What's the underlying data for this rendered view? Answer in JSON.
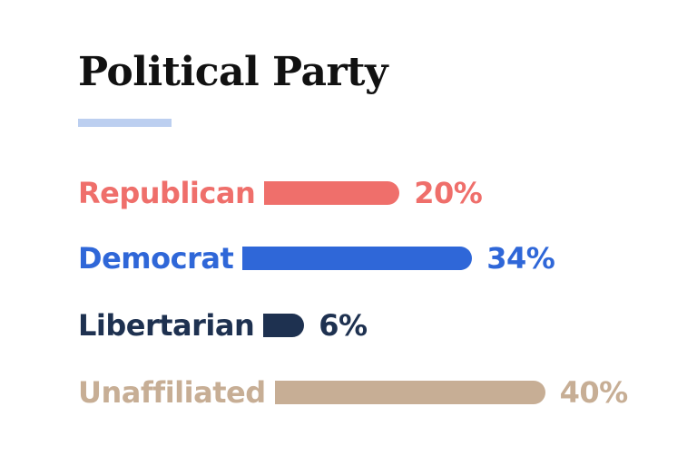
{
  "title": "Political Party",
  "accent_color": "#bccff0",
  "chart_data": {
    "type": "bar",
    "orientation": "horizontal",
    "title": "Political Party",
    "categories": [
      "Republican",
      "Democrat",
      "Libertarian",
      "Unaffiliated"
    ],
    "values": [
      20,
      34,
      6,
      40
    ],
    "value_labels": [
      "20%",
      "34%",
      "6%",
      "40%"
    ],
    "unit": "%",
    "colors": [
      "#ef6f6b",
      "#2f67d8",
      "#1e3150",
      "#c7ae95"
    ],
    "xlabel": "",
    "ylabel": "",
    "grid": false,
    "legend": "none"
  }
}
